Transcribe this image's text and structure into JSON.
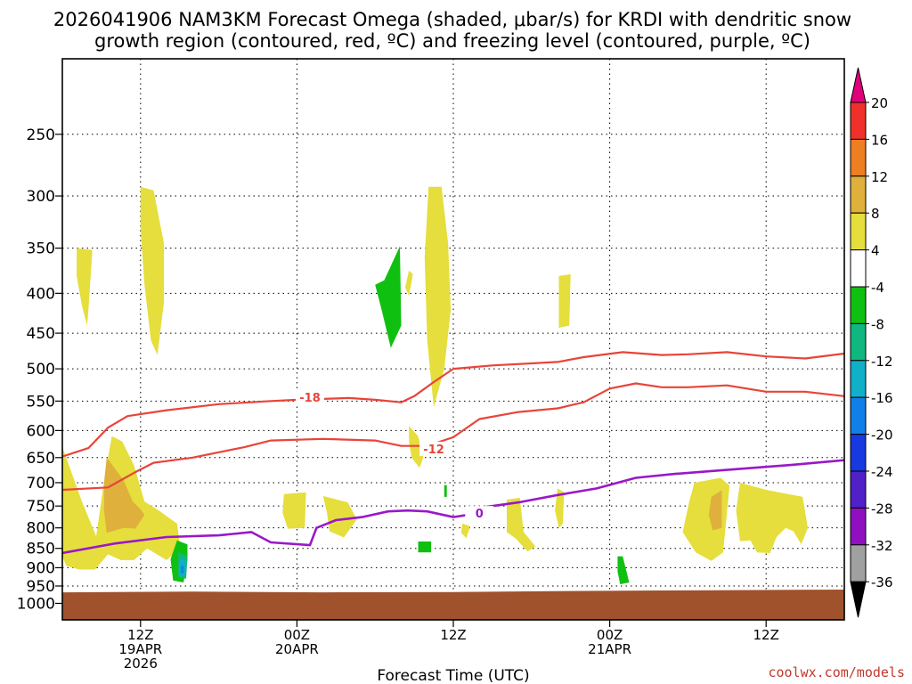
{
  "chart_data": {
    "type": "heatmap",
    "title_line1": "2026041906 NAM3KM Forecast Omega (shaded, μbar/s) for KRDI with dendritic snow",
    "title_line2": "growth region (contoured, red, ºC) and freezing level (contoured, purple, ºC)",
    "xlabel": "Forecast Time (UTC)",
    "xlim_hours": [
      0,
      60
    ],
    "x_ticks": [
      {
        "hour": 6,
        "lines": [
          "12Z",
          "19APR",
          "2026"
        ]
      },
      {
        "hour": 18,
        "lines": [
          "00Z",
          "20APR"
        ]
      },
      {
        "hour": 30,
        "lines": [
          "12Z"
        ]
      },
      {
        "hour": 42,
        "lines": [
          "00Z",
          "21APR"
        ]
      },
      {
        "hour": 54,
        "lines": [
          "12Z"
        ]
      }
    ],
    "y_scale": "log",
    "y_range_mb": [
      1050,
      200
    ],
    "y_ticks": [
      250,
      300,
      350,
      400,
      450,
      500,
      550,
      600,
      650,
      700,
      750,
      800,
      850,
      900,
      950,
      1000
    ],
    "grid": true,
    "colorbar": {
      "labels": [
        "20",
        "16",
        "12",
        "8",
        "4",
        "-4",
        "-8",
        "-12",
        "-16",
        "-20",
        "-24",
        "-28",
        "-32",
        "-36"
      ],
      "colors": [
        "#e0007a",
        "#f0302a",
        "#ee7e22",
        "#e0b03c",
        "#e5de3c",
        "#ffffff",
        "#10c010",
        "#10b880",
        "#10b0c8",
        "#1080e8",
        "#1838e0",
        "#5020c8",
        "#9010c0",
        "#a0a0a0",
        "#000000"
      ]
    },
    "ground_color": "#a0522d",
    "omega_regions": [
      {
        "value": 4,
        "color": "#e5de3c",
        "points": [
          [
            1.1,
            350
          ],
          [
            2.3,
            352
          ],
          [
            2.0,
            420
          ],
          [
            1.9,
            440
          ],
          [
            1.5,
            415
          ],
          [
            1.1,
            380
          ]
        ]
      },
      {
        "value": 4,
        "color": "#e5de3c",
        "points": [
          [
            6.0,
            292
          ],
          [
            7.0,
            295
          ],
          [
            7.8,
            345
          ],
          [
            7.8,
            410
          ],
          [
            7.3,
            480
          ],
          [
            6.8,
            460
          ],
          [
            6.3,
            390
          ],
          [
            6.0,
            330
          ]
        ]
      },
      {
        "value": 4,
        "color": "#e5de3c",
        "points": [
          [
            0.0,
            630
          ],
          [
            1.5,
            740
          ],
          [
            2.6,
            820
          ],
          [
            3.3,
            680
          ],
          [
            3.8,
            610
          ],
          [
            4.6,
            620
          ],
          [
            5.5,
            665
          ],
          [
            6.3,
            740
          ],
          [
            7.4,
            760
          ],
          [
            8.8,
            790
          ],
          [
            9.0,
            835
          ],
          [
            8.7,
            860
          ],
          [
            8.0,
            880
          ],
          [
            6.5,
            850
          ],
          [
            5.5,
            880
          ],
          [
            4.5,
            880
          ],
          [
            3.5,
            865
          ],
          [
            2.5,
            905
          ],
          [
            1.3,
            905
          ],
          [
            0.3,
            895
          ],
          [
            0.0,
            870
          ]
        ]
      },
      {
        "value": 4,
        "color": "#e5de3c",
        "points": [
          [
            17.0,
            724
          ],
          [
            18.7,
            720
          ],
          [
            18.6,
            800
          ],
          [
            17.3,
            802
          ],
          [
            16.9,
            765
          ]
        ]
      },
      {
        "value": 4,
        "color": "#e5de3c",
        "points": [
          [
            20.0,
            728
          ],
          [
            21.9,
            742
          ],
          [
            22.6,
            780
          ],
          [
            21.6,
            823
          ],
          [
            20.5,
            808
          ],
          [
            20.3,
            765
          ]
        ]
      },
      {
        "value": 4,
        "color": "#e5de3c",
        "points": [
          [
            26.6,
            374
          ],
          [
            26.9,
            378
          ],
          [
            26.6,
            403
          ],
          [
            26.3,
            393
          ]
        ]
      },
      {
        "value": 4,
        "color": "#e5de3c",
        "points": [
          [
            28.1,
            292
          ],
          [
            29.1,
            292
          ],
          [
            29.6,
            345
          ],
          [
            29.8,
            420
          ],
          [
            29.3,
            500
          ],
          [
            28.5,
            560
          ],
          [
            28.0,
            460
          ],
          [
            27.8,
            360
          ]
        ]
      },
      {
        "value": 4,
        "color": "#e5de3c",
        "points": [
          [
            26.6,
            592
          ],
          [
            27.3,
            610
          ],
          [
            27.7,
            650
          ],
          [
            27.4,
            670
          ],
          [
            26.8,
            650
          ],
          [
            26.6,
            620
          ]
        ]
      },
      {
        "value": 4,
        "color": "#e5de3c",
        "points": [
          [
            30.7,
            790
          ],
          [
            31.3,
            796
          ],
          [
            31.0,
            825
          ],
          [
            30.6,
            812
          ]
        ]
      },
      {
        "value": 4,
        "color": "#e5de3c",
        "points": [
          [
            34.1,
            736
          ],
          [
            35.1,
            732
          ],
          [
            35.4,
            810
          ],
          [
            36.3,
            845
          ],
          [
            35.7,
            858
          ],
          [
            34.8,
            826
          ],
          [
            34.1,
            810
          ]
        ]
      },
      {
        "value": 4,
        "color": "#e5de3c",
        "points": [
          [
            38.1,
            380
          ],
          [
            39.0,
            378
          ],
          [
            38.9,
            440
          ],
          [
            38.1,
            443
          ]
        ]
      },
      {
        "value": 4,
        "color": "#e5de3c",
        "points": [
          [
            38.0,
            712
          ],
          [
            38.5,
            720
          ],
          [
            38.4,
            790
          ],
          [
            38.1,
            800
          ],
          [
            37.8,
            760
          ]
        ]
      },
      {
        "value": 4,
        "color": "#e5de3c",
        "points": [
          [
            48.5,
            700
          ],
          [
            50.5,
            690
          ],
          [
            51.2,
            706
          ],
          [
            50.7,
            860
          ],
          [
            49.8,
            882
          ],
          [
            48.6,
            860
          ],
          [
            47.6,
            810
          ],
          [
            48.1,
            740
          ]
        ]
      },
      {
        "value": 4,
        "color": "#e5de3c",
        "points": [
          [
            52.0,
            700
          ],
          [
            54.0,
            715
          ],
          [
            56.8,
            730
          ],
          [
            57.2,
            800
          ],
          [
            56.7,
            840
          ],
          [
            56.1,
            808
          ],
          [
            55.5,
            800
          ],
          [
            54.8,
            822
          ],
          [
            54.3,
            862
          ],
          [
            53.3,
            860
          ],
          [
            52.8,
            830
          ],
          [
            52.0,
            832
          ],
          [
            51.7,
            760
          ]
        ]
      },
      {
        "value": 8,
        "color": "#e0b03c",
        "points": [
          [
            3.4,
            650
          ],
          [
            4.7,
            695
          ],
          [
            5.4,
            740
          ],
          [
            6.0,
            757
          ],
          [
            6.3,
            770
          ],
          [
            5.6,
            802
          ],
          [
            4.7,
            800
          ],
          [
            3.4,
            812
          ],
          [
            3.2,
            760
          ],
          [
            3.2,
            700
          ]
        ]
      },
      {
        "value": 8,
        "color": "#e0b03c",
        "points": [
          [
            49.8,
            730
          ],
          [
            50.6,
            716
          ],
          [
            50.6,
            800
          ],
          [
            49.9,
            806
          ],
          [
            49.6,
            770
          ]
        ]
      },
      {
        "value": -4,
        "color": "#10c010",
        "points": [
          [
            25.9,
            348
          ],
          [
            26.0,
            440
          ],
          [
            25.2,
            470
          ],
          [
            24.5,
            420
          ],
          [
            24.0,
            390
          ],
          [
            24.7,
            385
          ]
        ]
      },
      {
        "value": -4,
        "color": "#10c010",
        "points": [
          [
            8.8,
            830
          ],
          [
            9.6,
            840
          ],
          [
            9.6,
            880
          ],
          [
            9.3,
            940
          ],
          [
            8.5,
            935
          ],
          [
            8.3,
            878
          ]
        ]
      },
      {
        "value": -4,
        "color": "#10c010",
        "points": [
          [
            27.3,
            833
          ],
          [
            28.3,
            833
          ],
          [
            28.3,
            860
          ],
          [
            27.3,
            860
          ]
        ]
      },
      {
        "value": -4,
        "color": "#10c010",
        "points": [
          [
            29.3,
            705
          ],
          [
            29.5,
            705
          ],
          [
            29.5,
            730
          ],
          [
            29.3,
            730
          ]
        ]
      },
      {
        "value": -4,
        "color": "#10c010",
        "points": [
          [
            42.6,
            870
          ],
          [
            43.0,
            870
          ],
          [
            43.5,
            940
          ],
          [
            42.8,
            945
          ],
          [
            42.6,
            910
          ]
        ]
      },
      {
        "value": -8,
        "color": "#10b880",
        "points": [
          [
            8.9,
            860
          ],
          [
            9.6,
            870
          ],
          [
            9.5,
            930
          ],
          [
            8.9,
            925
          ]
        ]
      },
      {
        "value": -12,
        "color": "#10b0c8",
        "points": [
          [
            9.0,
            880
          ],
          [
            9.4,
            880
          ],
          [
            9.4,
            920
          ],
          [
            9.0,
            920
          ]
        ]
      },
      {
        "value": -16,
        "color": "#1080e8",
        "points": [
          [
            9.1,
            895
          ],
          [
            9.3,
            895
          ],
          [
            9.3,
            915
          ],
          [
            9.1,
            915
          ]
        ]
      }
    ],
    "contours": [
      {
        "name": "-18",
        "kind": "dendritic",
        "color": "#e8443a",
        "label_at": [
          19.0,
          545
        ],
        "points": [
          [
            0.0,
            648
          ],
          [
            2.0,
            632
          ],
          [
            3.5,
            595
          ],
          [
            5.0,
            575
          ],
          [
            8.0,
            565
          ],
          [
            12.0,
            555
          ],
          [
            16.0,
            550
          ],
          [
            18.0,
            548
          ],
          [
            22.0,
            545
          ],
          [
            24.0,
            548
          ],
          [
            26.0,
            552
          ],
          [
            27.0,
            542
          ],
          [
            28.5,
            520
          ],
          [
            30.0,
            500
          ],
          [
            33.0,
            495
          ],
          [
            36.0,
            492
          ],
          [
            38.0,
            490
          ],
          [
            40.0,
            483
          ],
          [
            43.0,
            476
          ],
          [
            46.0,
            480
          ],
          [
            48.0,
            479
          ],
          [
            51.0,
            476
          ],
          [
            54.0,
            482
          ],
          [
            57.0,
            485
          ],
          [
            60.0,
            478
          ]
        ]
      },
      {
        "name": "-12",
        "kind": "dendritic",
        "color": "#e8443a",
        "label_at": [
          28.5,
          635
        ],
        "points": [
          [
            0.0,
            715
          ],
          [
            3.5,
            710
          ],
          [
            5.5,
            680
          ],
          [
            7.0,
            660
          ],
          [
            10.0,
            650
          ],
          [
            14.0,
            630
          ],
          [
            16.0,
            618
          ],
          [
            20.0,
            615
          ],
          [
            24.0,
            618
          ],
          [
            26.0,
            628
          ],
          [
            28.0,
            628
          ],
          [
            30.0,
            612
          ],
          [
            32.0,
            580
          ],
          [
            35.0,
            568
          ],
          [
            38.0,
            562
          ],
          [
            40.0,
            552
          ],
          [
            42.0,
            530
          ],
          [
            44.0,
            522
          ],
          [
            46.0,
            528
          ],
          [
            48.0,
            528
          ],
          [
            51.0,
            525
          ],
          [
            54.0,
            535
          ],
          [
            57.0,
            535
          ],
          [
            60.0,
            542
          ]
        ]
      },
      {
        "name": "0",
        "kind": "freezing",
        "color": "#9a18c8",
        "label_at": [
          32.0,
          768
        ],
        "points": [
          [
            0.0,
            862
          ],
          [
            4.0,
            838
          ],
          [
            8.0,
            822
          ],
          [
            12.0,
            818
          ],
          [
            14.5,
            810
          ],
          [
            16.0,
            835
          ],
          [
            19.0,
            842
          ],
          [
            19.5,
            800
          ],
          [
            21.0,
            782
          ],
          [
            23.0,
            775
          ],
          [
            25.0,
            762
          ],
          [
            26.5,
            760
          ],
          [
            28.0,
            762
          ],
          [
            30.0,
            775
          ],
          [
            31.7,
            767
          ],
          [
            32.5,
            752
          ],
          [
            35.0,
            742
          ],
          [
            38.0,
            726
          ],
          [
            41.0,
            712
          ],
          [
            44.0,
            690
          ],
          [
            47.0,
            682
          ],
          [
            50.0,
            676
          ],
          [
            53.0,
            670
          ],
          [
            56.0,
            664
          ],
          [
            60.0,
            655
          ]
        ]
      }
    ]
  },
  "credit": "coolwx.com/models"
}
